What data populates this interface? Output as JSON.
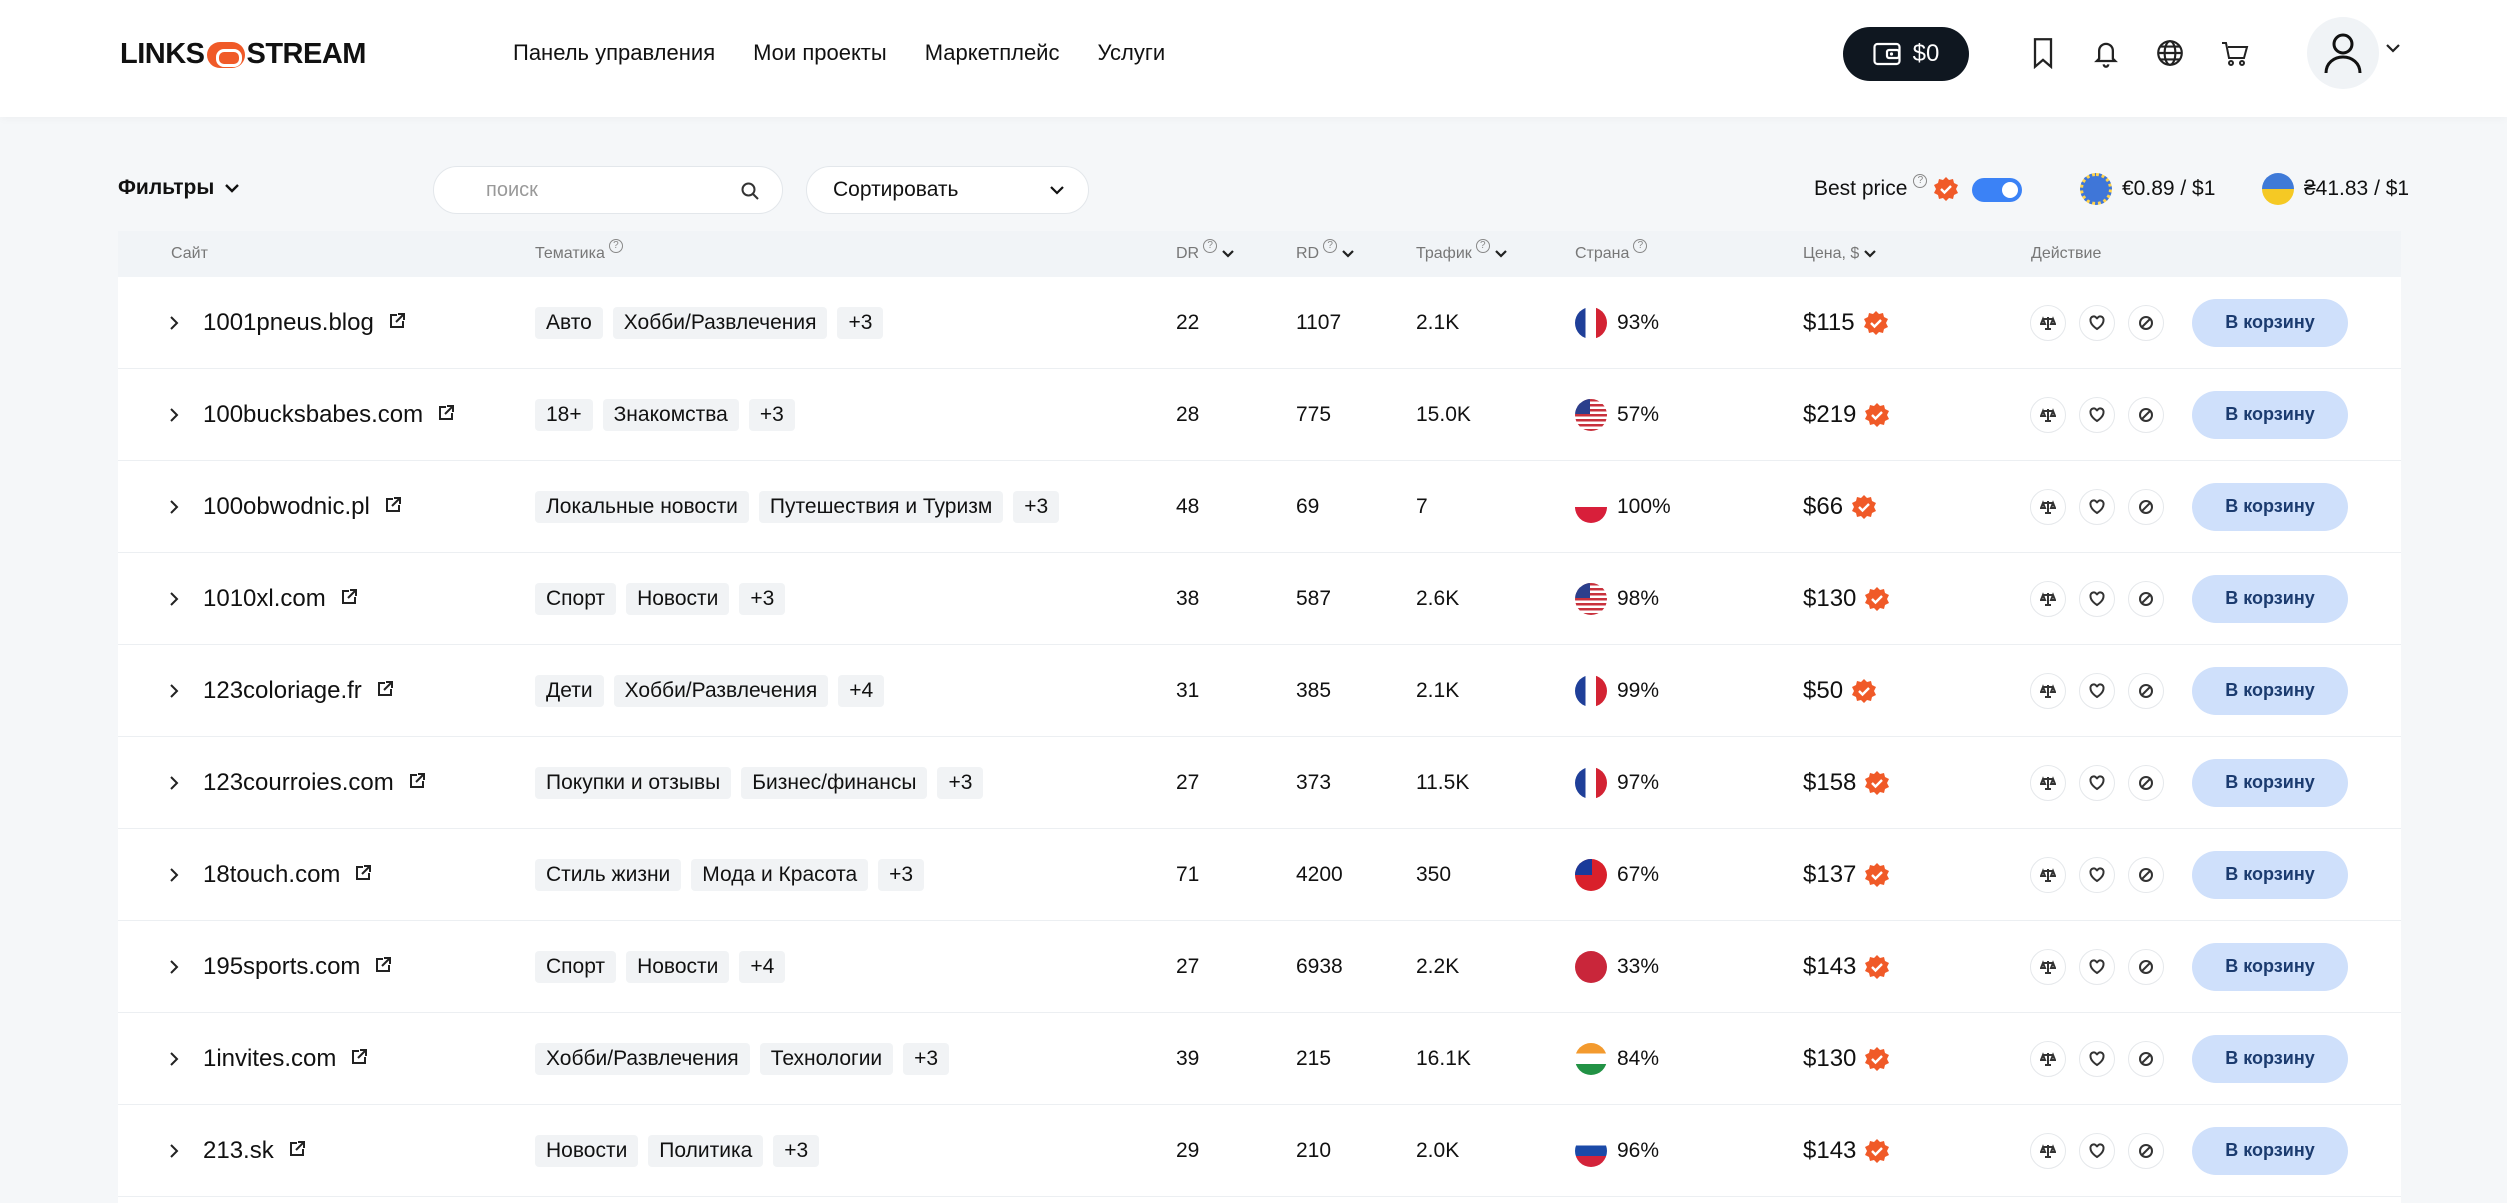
{
  "header": {
    "logo_left": "LINKS",
    "logo_right": "STREAM",
    "nav": [
      "Панель управления",
      "Мои проекты",
      "Маркетплейс",
      "Услуги"
    ],
    "wallet_balance": "$0"
  },
  "toolbar": {
    "filters_label": "Фильтры",
    "search_placeholder": "поиск",
    "sort_label": "Сортировать",
    "best_price_label": "Best price",
    "best_price_enabled": true,
    "rate_eur": "€0.89 / $1",
    "rate_uah": "₴41.83 / $1"
  },
  "table": {
    "columns": {
      "site": "Сайт",
      "topic": "Тематика",
      "dr": "DR",
      "rd": "RD",
      "traffic": "Трафик",
      "country": "Страна",
      "price": "Цена, $",
      "action": "Действие"
    },
    "cart_label": "В корзину",
    "rows": [
      {
        "site": "1001pneus.blog",
        "tags": [
          "Авто",
          "Хобби/Развлечения",
          "+3"
        ],
        "dr": "22",
        "rd": "1107",
        "traffic": "2.1K",
        "flag": "fr",
        "share": "93%",
        "price": "$115"
      },
      {
        "site": "100bucksbabes.com",
        "tags": [
          "18+",
          "Знакомства",
          "+3"
        ],
        "dr": "28",
        "rd": "775",
        "traffic": "15.0K",
        "flag": "us",
        "share": "57%",
        "price": "$219"
      },
      {
        "site": "100obwodnic.pl",
        "tags": [
          "Локальные новости",
          "Путешествия и Туризм",
          "+3"
        ],
        "dr": "48",
        "rd": "69",
        "traffic": "7",
        "flag": "pl",
        "share": "100%",
        "price": "$66"
      },
      {
        "site": "1010xl.com",
        "tags": [
          "Спорт",
          "Новости",
          "+3"
        ],
        "dr": "38",
        "rd": "587",
        "traffic": "2.6K",
        "flag": "us",
        "share": "98%",
        "price": "$130"
      },
      {
        "site": "123coloriage.fr",
        "tags": [
          "Дети",
          "Хобби/Развлечения",
          "+4"
        ],
        "dr": "31",
        "rd": "385",
        "traffic": "2.1K",
        "flag": "fr",
        "share": "99%",
        "price": "$50"
      },
      {
        "site": "123courroies.com",
        "tags": [
          "Покупки и отзывы",
          "Бизнес/финансы",
          "+3"
        ],
        "dr": "27",
        "rd": "373",
        "traffic": "11.5K",
        "flag": "fr",
        "share": "97%",
        "price": "$158"
      },
      {
        "site": "18touch.com",
        "tags": [
          "Стиль жизни",
          "Мода и Красота",
          "+3"
        ],
        "dr": "71",
        "rd": "4200",
        "traffic": "350",
        "flag": "tw",
        "share": "67%",
        "price": "$137"
      },
      {
        "site": "195sports.com",
        "tags": [
          "Спорт",
          "Новости",
          "+4"
        ],
        "dr": "27",
        "rd": "6938",
        "traffic": "2.2K",
        "flag": "red",
        "share": "33%",
        "price": "$143"
      },
      {
        "site": "1invites.com",
        "tags": [
          "Хобби/Развлечения",
          "Технологии",
          "+3"
        ],
        "dr": "39",
        "rd": "215",
        "traffic": "16.1K",
        "flag": "in",
        "share": "84%",
        "price": "$130"
      },
      {
        "site": "213.sk",
        "tags": [
          "Новости",
          "Политика",
          "+3"
        ],
        "dr": "29",
        "rd": "210",
        "traffic": "2.0K",
        "flag": "sk",
        "share": "96%",
        "price": "$143"
      }
    ]
  }
}
